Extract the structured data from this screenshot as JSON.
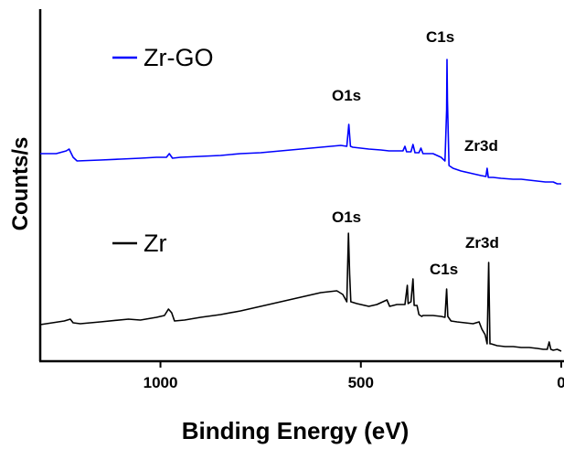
{
  "chart_data": {
    "type": "line",
    "xlabel": "Binding Energy (eV)",
    "ylabel": "Counts/s",
    "xlim": [
      1300,
      0
    ],
    "x_reversed": true,
    "yticks_shown": false,
    "legend": [
      {
        "label": "Zr-GO",
        "color": "#0000ff"
      },
      {
        "label": "Zr",
        "color": "#000000"
      }
    ],
    "x_ticks": [
      1000,
      500,
      0
    ],
    "x_tick_labels": [
      "1000",
      "500",
      "0"
    ],
    "series": [
      {
        "name": "Zr-GO",
        "color": "#0000ff",
        "points": [
          [
            1300,
            168
          ],
          [
            1260,
            168
          ],
          [
            1235,
            165
          ],
          [
            1228,
            163
          ],
          [
            1218,
            172
          ],
          [
            1208,
            176
          ],
          [
            1150,
            175
          ],
          [
            1100,
            174
          ],
          [
            1050,
            173
          ],
          [
            1010,
            172
          ],
          [
            985,
            172
          ],
          [
            978,
            168
          ],
          [
            970,
            173
          ],
          [
            950,
            172
          ],
          [
            900,
            171
          ],
          [
            850,
            170
          ],
          [
            800,
            168
          ],
          [
            750,
            167
          ],
          [
            700,
            165
          ],
          [
            650,
            163
          ],
          [
            600,
            161
          ],
          [
            550,
            159
          ],
          [
            535,
            160
          ],
          [
            530,
            136
          ],
          [
            526,
            160
          ],
          [
            520,
            161
          ],
          [
            480,
            163
          ],
          [
            450,
            164
          ],
          [
            430,
            165
          ],
          [
            395,
            165
          ],
          [
            390,
            160
          ],
          [
            386,
            166
          ],
          [
            375,
            166
          ],
          [
            370,
            158
          ],
          [
            365,
            167
          ],
          [
            355,
            167
          ],
          [
            350,
            162
          ],
          [
            345,
            168
          ],
          [
            320,
            168
          ],
          [
            300,
            172
          ],
          [
            290,
            176
          ],
          [
            286,
            120
          ],
          [
            285,
            65
          ],
          [
            284,
            110
          ],
          [
            280,
            181
          ],
          [
            270,
            184
          ],
          [
            250,
            187
          ],
          [
            220,
            190
          ],
          [
            200,
            192
          ],
          [
            188,
            193
          ],
          [
            185,
            184
          ],
          [
            182,
            194
          ],
          [
            170,
            194
          ],
          [
            150,
            195
          ],
          [
            120,
            196
          ],
          [
            100,
            196
          ],
          [
            80,
            197
          ],
          [
            60,
            198
          ],
          [
            40,
            199
          ],
          [
            20,
            199
          ],
          [
            10,
            201
          ],
          [
            0,
            201
          ]
        ]
      },
      {
        "name": "Zr",
        "color": "#000000",
        "points": [
          [
            1300,
            355
          ],
          [
            1270,
            353
          ],
          [
            1240,
            351
          ],
          [
            1225,
            349
          ],
          [
            1218,
            353
          ],
          [
            1200,
            354
          ],
          [
            1150,
            352
          ],
          [
            1080,
            349
          ],
          [
            1050,
            350
          ],
          [
            1010,
            347
          ],
          [
            990,
            345
          ],
          [
            980,
            338
          ],
          [
            972,
            342
          ],
          [
            965,
            351
          ],
          [
            940,
            350
          ],
          [
            900,
            347
          ],
          [
            850,
            344
          ],
          [
            800,
            340
          ],
          [
            750,
            335
          ],
          [
            700,
            330
          ],
          [
            650,
            325
          ],
          [
            600,
            320
          ],
          [
            560,
            318
          ],
          [
            545,
            322
          ],
          [
            535,
            330
          ],
          [
            531,
            255
          ],
          [
            528,
            300
          ],
          [
            525,
            330
          ],
          [
            510,
            332
          ],
          [
            480,
            335
          ],
          [
            460,
            333
          ],
          [
            435,
            328
          ],
          [
            428,
            335
          ],
          [
            410,
            333
          ],
          [
            390,
            333
          ],
          [
            384,
            312
          ],
          [
            382,
            332
          ],
          [
            375,
            330
          ],
          [
            370,
            305
          ],
          [
            367,
            334
          ],
          [
            360,
            334
          ],
          [
            355,
            344
          ],
          [
            348,
            346
          ],
          [
            345,
            345
          ],
          [
            320,
            345
          ],
          [
            300,
            346
          ],
          [
            290,
            347
          ],
          [
            286,
            316
          ],
          [
            283,
            346
          ],
          [
            275,
            351
          ],
          [
            260,
            352
          ],
          [
            240,
            353
          ],
          [
            220,
            354
          ],
          [
            205,
            352
          ],
          [
            198,
            360
          ],
          [
            190,
            366
          ],
          [
            185,
            376
          ],
          [
            181,
            287
          ],
          [
            178,
            376
          ],
          [
            175,
            376
          ],
          [
            160,
            378
          ],
          [
            140,
            379
          ],
          [
            120,
            379
          ],
          [
            100,
            380
          ],
          [
            80,
            380
          ],
          [
            60,
            381
          ],
          [
            45,
            382
          ],
          [
            35,
            382
          ],
          [
            30,
            374
          ],
          [
            26,
            382
          ],
          [
            20,
            383
          ],
          [
            10,
            382
          ],
          [
            0,
            384
          ]
        ]
      }
    ],
    "annotations": [
      {
        "text": "C1s",
        "series": "Zr-GO"
      },
      {
        "text": "O1s",
        "series": "Zr-GO"
      },
      {
        "text": "Zr3d",
        "series": "Zr-GO"
      },
      {
        "text": "O1s",
        "series": "Zr"
      },
      {
        "text": "C1s",
        "series": "Zr"
      },
      {
        "text": "Zr3d",
        "series": "Zr"
      }
    ]
  }
}
